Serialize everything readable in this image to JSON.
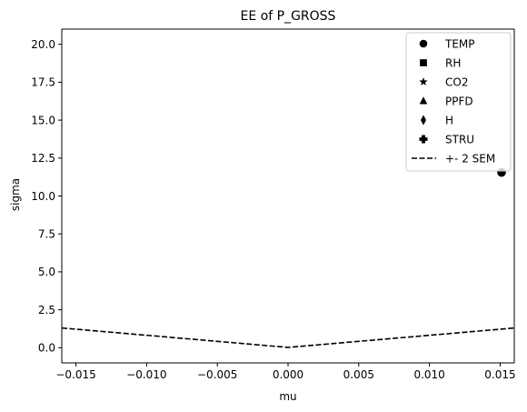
{
  "chart_data": {
    "type": "scatter",
    "title": "EE of P_GROSS",
    "xlabel": "mu",
    "ylabel": "sigma",
    "xlim": [
      -0.016,
      0.016
    ],
    "ylim": [
      -1.0,
      21.0
    ],
    "xticks": [
      -0.015,
      -0.01,
      -0.005,
      0.0,
      0.005,
      0.01,
      0.015
    ],
    "xtick_labels": [
      "−0.015",
      "−0.010",
      "−0.005",
      "0.000",
      "0.005",
      "0.010",
      "0.015"
    ],
    "yticks": [
      0.0,
      2.5,
      5.0,
      7.5,
      10.0,
      12.5,
      15.0,
      17.5,
      20.0
    ],
    "ytick_labels": [
      "0.0",
      "2.5",
      "5.0",
      "7.5",
      "10.0",
      "12.5",
      "15.0",
      "17.5",
      "20.0"
    ],
    "grid": false,
    "legend_position": "top-right",
    "series": [
      {
        "name": "TEMP",
        "marker": "circle",
        "color": "#000000",
        "points": [
          [
            0.0151,
            11.55
          ]
        ]
      },
      {
        "name": "RH",
        "marker": "square",
        "color": "#000000",
        "points": []
      },
      {
        "name": "CO2",
        "marker": "star",
        "color": "#000000",
        "points": []
      },
      {
        "name": "PPFD",
        "marker": "triangle",
        "color": "#000000",
        "points": []
      },
      {
        "name": "H",
        "marker": "diamond",
        "color": "#000000",
        "points": []
      },
      {
        "name": "STRU",
        "marker": "plus",
        "color": "#000000",
        "points": []
      }
    ],
    "reference_line": {
      "name": "+- 2 SEM",
      "style": "dashed",
      "color": "#000000",
      "points": [
        [
          -0.016,
          1.3
        ],
        [
          0.0,
          0.02
        ],
        [
          0.016,
          1.3
        ]
      ]
    }
  }
}
